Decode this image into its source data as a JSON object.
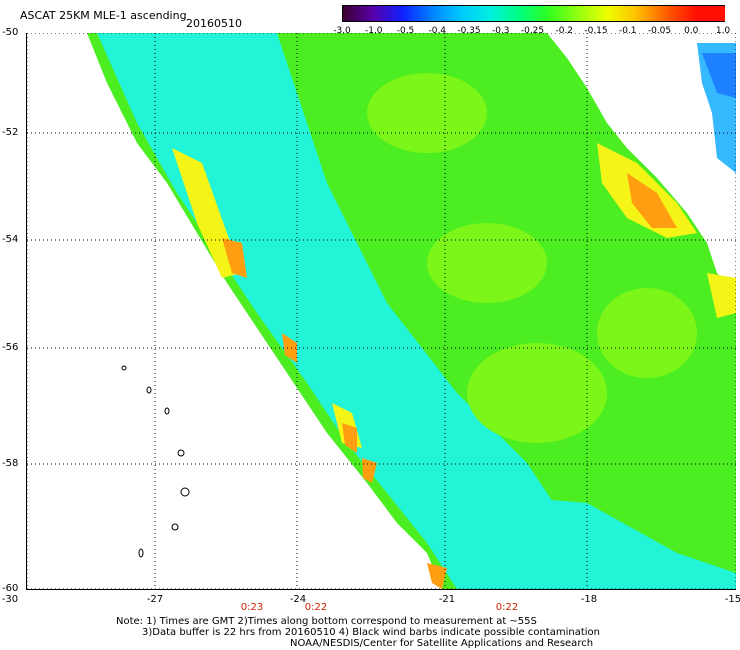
{
  "header": {
    "title": "ASCAT 25KM MLE-1 ascending",
    "date": "20160510"
  },
  "colorbar": {
    "ticks": [
      "-3.0",
      "-1.0",
      "-0.5",
      "-0.4",
      "-0.35",
      "-0.3",
      "-0.25",
      "-0.2",
      "-0.15",
      "-0.1",
      "-0.05",
      "0.0",
      "1.0"
    ],
    "colors": [
      "#3a0030",
      "#5a00a8",
      "#1020ff",
      "#0080ff",
      "#00c8ff",
      "#00f0e0",
      "#00ff80",
      "#30ff20",
      "#90ff10",
      "#f0ff00",
      "#ffc000",
      "#ff6000",
      "#ff1000"
    ]
  },
  "map": {
    "lat_labels": [
      "-50",
      "-52",
      "-54",
      "-56",
      "-58",
      "-60"
    ],
    "lon_labels": [
      "-30",
      "-27",
      "-24",
      "-21",
      "-18",
      "-15"
    ],
    "time_labels": [
      "0:23",
      "0:22",
      "0:22"
    ],
    "colors": {
      "green": "#4cee22",
      "lightgreen": "#7cf618",
      "cyan": "#22f4d8",
      "aqua": "#3ff8a8",
      "yellow": "#f4f416",
      "orange": "#ff9e10",
      "blue": "#1c80ff",
      "lightblue": "#36b8ff"
    }
  },
  "footer": {
    "line1": "Note: 1) Times are GMT 2)Times along bottom correspond to measurement at ~55S",
    "line2": "3)Data buffer is 22 hrs from 20160510 4) Black wind barbs indicate possible contamination",
    "line3": "NOAA/NESDIS/Center for Satellite Applications and Research"
  }
}
